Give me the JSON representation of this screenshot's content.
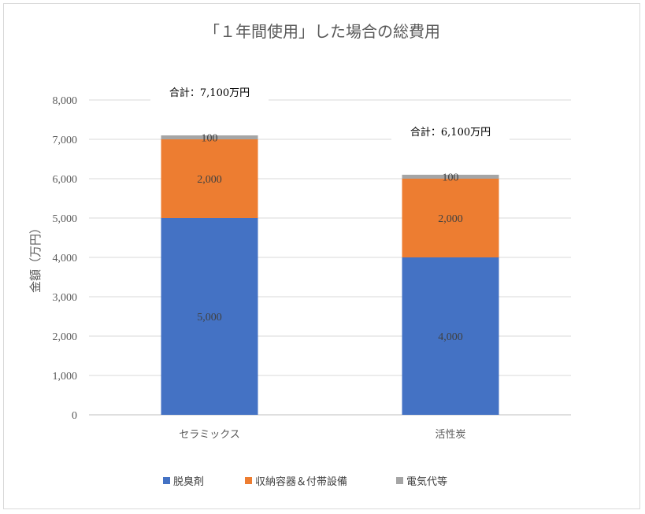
{
  "chart_data": {
    "type": "bar",
    "stacked": true,
    "title": "「１年間使用」した場合の総費用",
    "ylabel": "金額（万円）",
    "xlabel": "",
    "ylim": [
      0,
      8000
    ],
    "yticks": [
      0,
      1000,
      2000,
      3000,
      4000,
      5000,
      6000,
      7000,
      8000
    ],
    "ytick_labels": [
      "0",
      "1,000",
      "2,000",
      "3,000",
      "4,000",
      "5,000",
      "6,000",
      "7,000",
      "8,000"
    ],
    "grid": true,
    "legend_position": "bottom",
    "categories": [
      "セラミックス",
      "活性炭"
    ],
    "series": [
      {
        "name": "脱臭剤",
        "values": [
          5000,
          4000
        ],
        "labels": [
          "5,000",
          "4,000"
        ],
        "color": "#4472c4"
      },
      {
        "name": "収納容器＆付帯設備",
        "values": [
          2000,
          2000
        ],
        "labels": [
          "2,000",
          "2,000"
        ],
        "color": "#ed7d31"
      },
      {
        "name": "電気代等",
        "values": [
          100,
          100
        ],
        "labels": [
          "100",
          "100"
        ],
        "color": "#a5a5a5"
      }
    ],
    "annotations": [
      "合計：7,100万円",
      "合計：6,100万円"
    ]
  }
}
